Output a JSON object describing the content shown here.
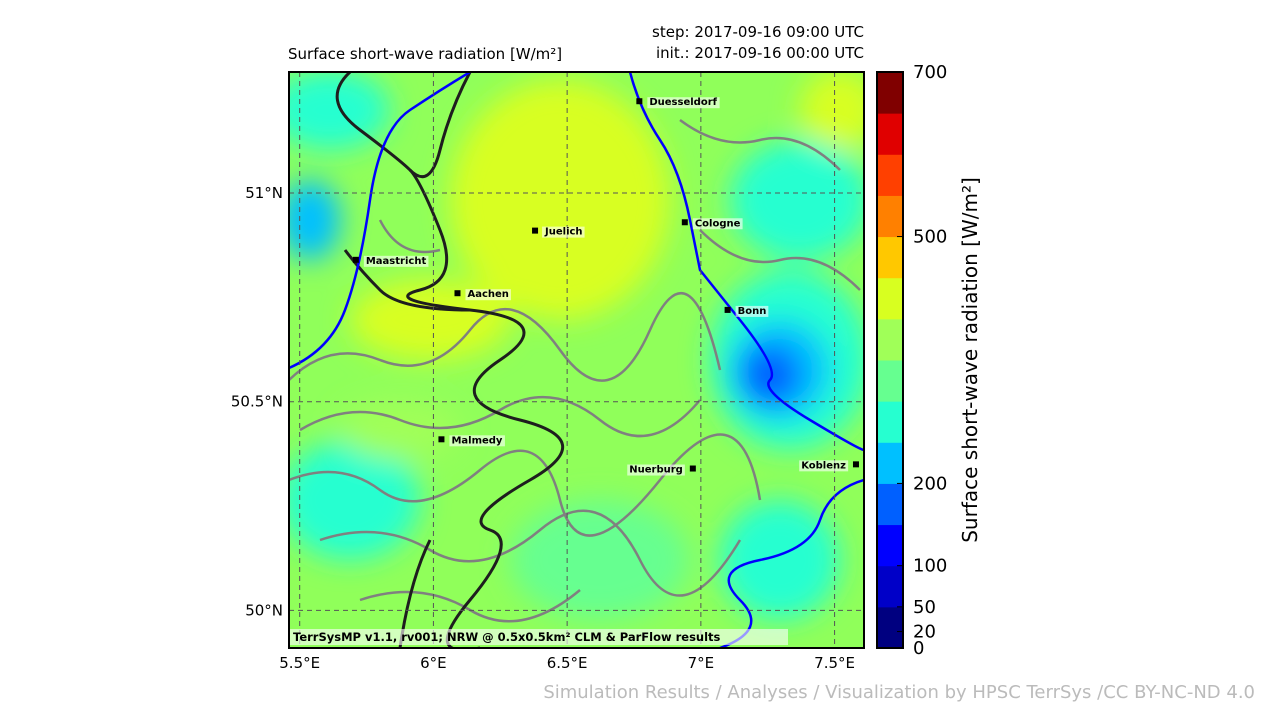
{
  "title": "Surface short-wave radiation [W/m²]",
  "step": "step: 2017-09-16 09:00 UTC",
  "init": "init.: 2017-09-16 00:00 UTC",
  "credit": "TerrSysMP v1.1, rv001; NRW @ 0.5x0.5km² CLM & ParFlow results",
  "footer": "Simulation Results / Analyses / Visualization by HPSC TerrSys /CC BY-NC-ND 4.0",
  "map": {
    "xlim": [
      5.46,
      7.61
    ],
    "ylim": [
      49.91,
      51.29
    ],
    "grid": true,
    "xticks": [
      {
        "value": 5.5,
        "label": "5.5°E"
      },
      {
        "value": 6,
        "label": "6°E"
      },
      {
        "value": 6.5,
        "label": "6.5°E"
      },
      {
        "value": 7,
        "label": "7°E"
      },
      {
        "value": 7.5,
        "label": "7.5°E"
      }
    ],
    "yticks": [
      {
        "value": 50,
        "label": "50°N"
      },
      {
        "value": 50.5,
        "label": "50.5°N"
      },
      {
        "value": 51,
        "label": "51°N"
      }
    ],
    "cities": [
      {
        "name": "Duesseldorf",
        "lon": 6.77,
        "lat": 51.22
      },
      {
        "name": "Juelich",
        "lon": 6.38,
        "lat": 50.91
      },
      {
        "name": "Cologne",
        "lon": 6.94,
        "lat": 50.93
      },
      {
        "name": "Maastricht",
        "lon": 5.71,
        "lat": 50.84
      },
      {
        "name": "Aachen",
        "lon": 6.09,
        "lat": 50.76
      },
      {
        "name": "Bonn",
        "lon": 7.1,
        "lat": 50.72
      },
      {
        "name": "Malmedy",
        "lon": 6.03,
        "lat": 50.41
      },
      {
        "name": "Nuerburg",
        "lon": 6.97,
        "lat": 50.34
      },
      {
        "name": "Koblenz",
        "lon": 7.58,
        "lat": 50.35
      }
    ]
  },
  "colorbar": {
    "label": "Surface short-wave radiation [W/m²]",
    "levels": [
      0,
      50,
      100,
      150,
      200,
      250,
      300,
      350,
      400,
      450,
      500,
      550,
      600,
      650,
      700
    ],
    "colors": [
      "#000080",
      "#0000c8",
      "#0000ff",
      "#0060ff",
      "#00c0ff",
      "#26ffd0",
      "#66ff90",
      "#a0ff58",
      "#d8ff20",
      "#ffc800",
      "#ff8000",
      "#ff4000",
      "#e00000",
      "#800000"
    ],
    "ticks": [
      0,
      20,
      50,
      100,
      200,
      500,
      700
    ]
  }
}
